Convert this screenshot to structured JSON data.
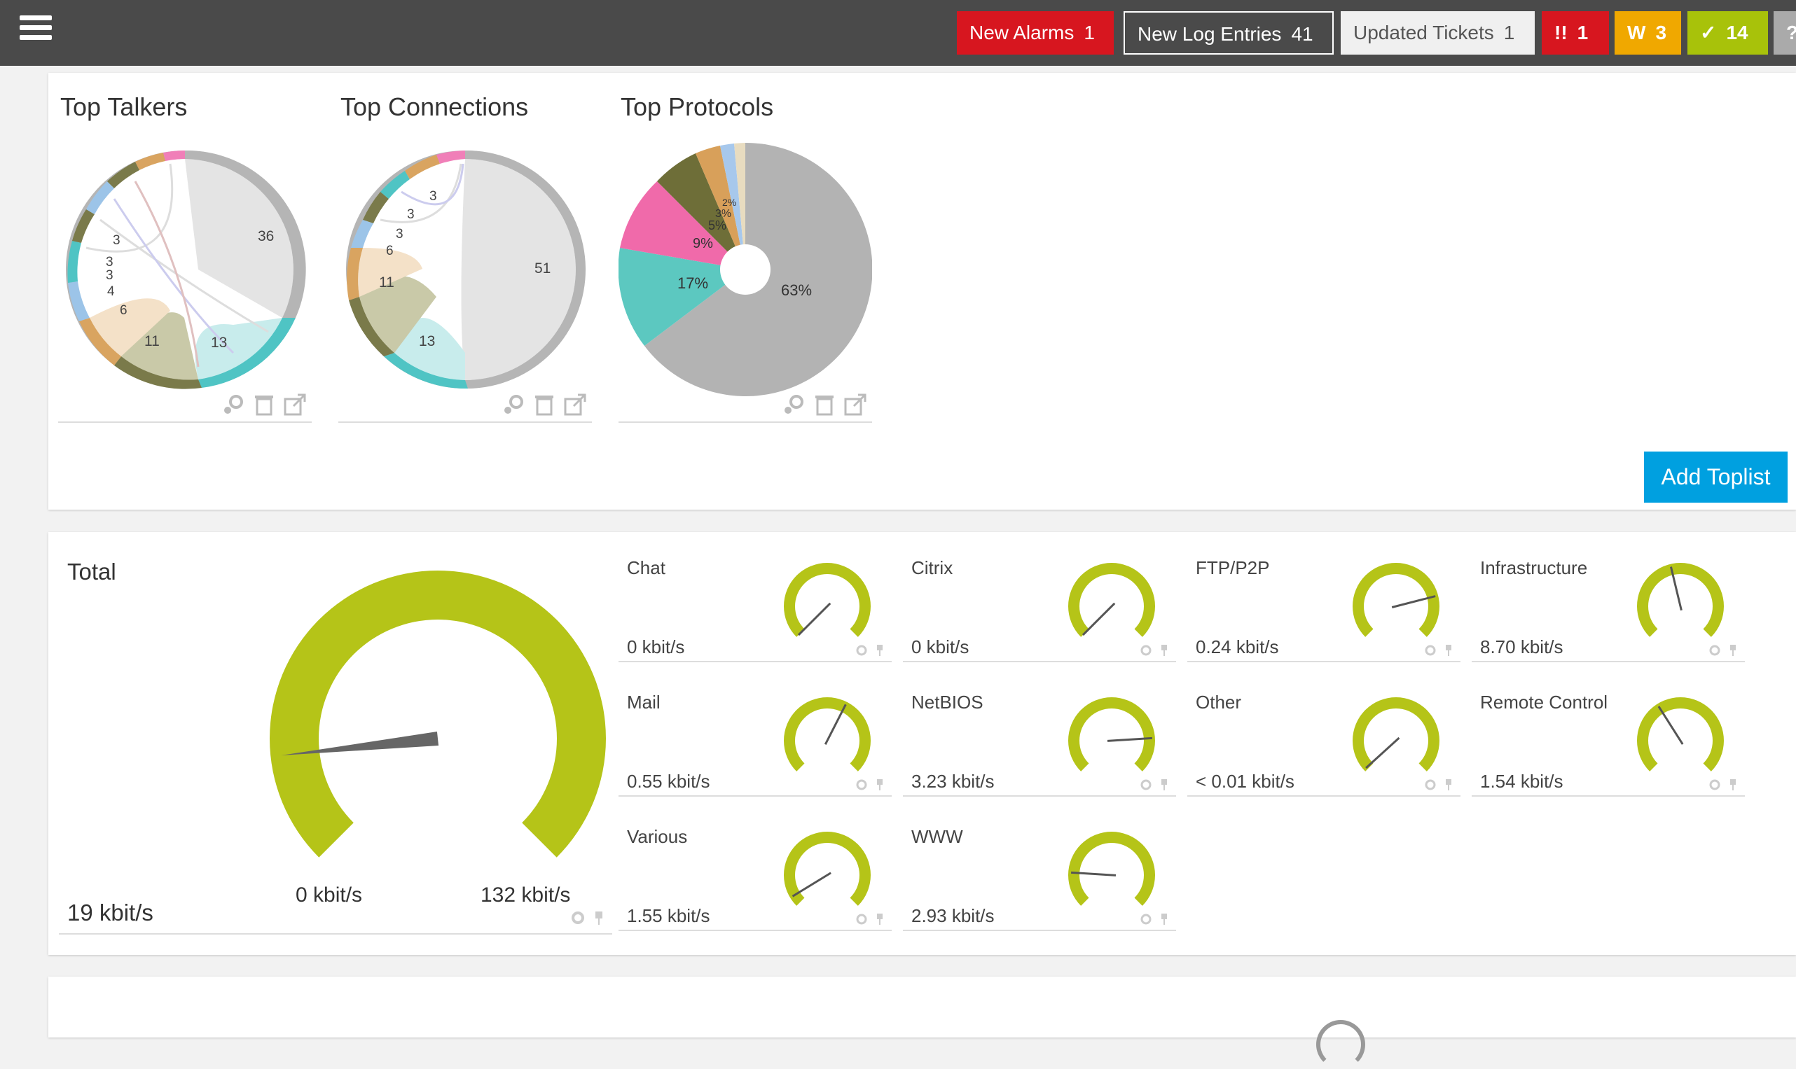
{
  "topbar": {
    "menu_icon": "hamburger-menu-icon",
    "alarms": {
      "label": "New Alarms",
      "count": "1",
      "color": "#d7161f"
    },
    "logs": {
      "label": "New Log Entries",
      "count": "41"
    },
    "tickets": {
      "label": "Updated Tickets",
      "count": "1"
    },
    "errors": {
      "symbol": "!!",
      "count": "1",
      "color": "#d7161f"
    },
    "warnings": {
      "symbol": "W",
      "count": "3",
      "color": "#f0a800"
    },
    "ok": {
      "symbol": "✓",
      "count": "14",
      "color": "#a8c20a"
    },
    "help": {
      "symbol": "?"
    }
  },
  "toplists": [
    {
      "title": "Top Talkers",
      "type": "chord",
      "labels": [
        "36",
        "13",
        "11",
        "6",
        "4",
        "3",
        "3",
        "3"
      ]
    },
    {
      "title": "Top Connections",
      "type": "chord",
      "labels": [
        "51",
        "13",
        "11",
        "6",
        "3",
        "3",
        "3"
      ]
    },
    {
      "title": "Top Protocols",
      "type": "pie",
      "labels": [
        "63%",
        "17%",
        "9%",
        "5%",
        "3%",
        "2%"
      ]
    }
  ],
  "toplist_icons": [
    "settings-icon",
    "delete-icon",
    "open-external-icon"
  ],
  "add_toplist_label": "Add Toplist",
  "total": {
    "title": "Total",
    "value_label": "19 kbit/s",
    "value": 19,
    "min_label": "0 kbit/s",
    "max_label": "132 kbit/s",
    "min": 0,
    "max": 132
  },
  "channels": [
    {
      "name": "Chat",
      "value": "0 kbit/s",
      "level": 0.0
    },
    {
      "name": "Citrix",
      "value": "0 kbit/s",
      "level": 0.0
    },
    {
      "name": "FTP/P2P",
      "value": "0.24 kbit/s",
      "level": 0.78
    },
    {
      "name": "Infrastructure",
      "value": "8.70 kbit/s",
      "level": 0.45
    },
    {
      "name": "Mail",
      "value": "0.55 kbit/s",
      "level": 0.6
    },
    {
      "name": "NetBIOS",
      "value": "3.23 kbit/s",
      "level": 0.82
    },
    {
      "name": "Other",
      "value": "< 0.01 kbit/s",
      "level": 0.01
    },
    {
      "name": "Remote Control",
      "value": "1.54 kbit/s",
      "level": 0.38
    },
    {
      "name": "Various",
      "value": "1.55 kbit/s",
      "level": 0.05
    },
    {
      "name": "WWW",
      "value": "2.93 kbit/s",
      "level": 0.18
    }
  ],
  "colors": {
    "gauge": "#b5c418",
    "needle": "#666666",
    "accent": "#00a0e0"
  }
}
